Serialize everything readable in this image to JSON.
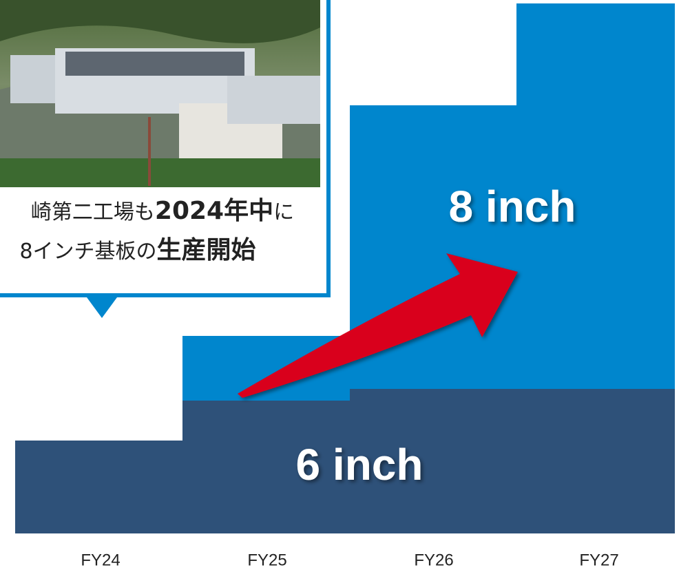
{
  "callout": {
    "line1": [
      "崎第二工場も",
      "2024年中",
      "に"
    ],
    "line2": [
      "8インチ基板の",
      "生産開始"
    ]
  },
  "segments": {
    "upper": "8 inch",
    "lower": "6 inch"
  },
  "categories": [
    "FY24",
    "FY25",
    "FY26",
    "FY27"
  ]
}
